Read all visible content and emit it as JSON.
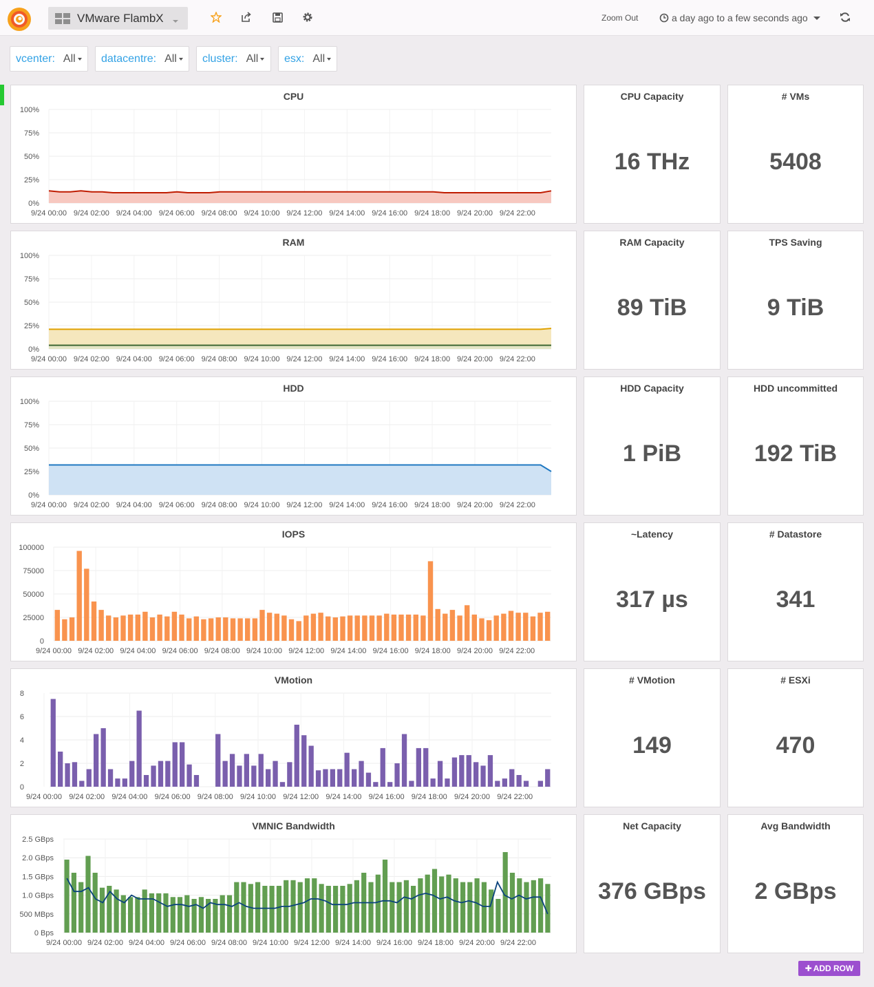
{
  "navbar": {
    "title": "VMware FlambX",
    "zoom_out": "Zoom Out",
    "time_range": "a day ago to a few seconds ago"
  },
  "variables": [
    {
      "label": "vcenter:",
      "value": "All"
    },
    {
      "label": "datacentre:",
      "value": "All"
    },
    {
      "label": "cluster:",
      "value": "All"
    },
    {
      "label": "esx:",
      "value": "All"
    }
  ],
  "x_ticks": [
    "9/24 00:00",
    "9/24 02:00",
    "9/24 04:00",
    "9/24 06:00",
    "9/24 08:00",
    "9/24 10:00",
    "9/24 12:00",
    "9/24 14:00",
    "9/24 16:00",
    "9/24 18:00",
    "9/24 20:00",
    "9/24 22:00"
  ],
  "stats": {
    "cpu_capacity": {
      "title": "CPU Capacity",
      "value": "16 THz"
    },
    "vms": {
      "title": "# VMs",
      "value": "5408"
    },
    "ram_capacity": {
      "title": "RAM Capacity",
      "value": "89 TiB"
    },
    "tps_saving": {
      "title": "TPS Saving",
      "value": "9 TiB"
    },
    "hdd_capacity": {
      "title": "HDD Capacity",
      "value": "1 PiB"
    },
    "hdd_uncommitted": {
      "title": "HDD uncommitted",
      "value": "192 TiB"
    },
    "latency": {
      "title": "~Latency",
      "value": "317 µs"
    },
    "datastore": {
      "title": "# Datastore",
      "value": "341"
    },
    "vmotion_count": {
      "title": "# VMotion",
      "value": "149"
    },
    "esxi": {
      "title": "# ESXi",
      "value": "470"
    },
    "net_capacity": {
      "title": "Net Capacity",
      "value": "376 GBps"
    },
    "avg_bandwidth": {
      "title": "Avg Bandwidth",
      "value": "2 GBps"
    }
  },
  "add_row": "ADD ROW",
  "chart_data": [
    {
      "id": "cpu",
      "type": "area",
      "title": "CPU",
      "y_ticks": [
        "100%",
        "75%",
        "50%",
        "25%",
        "0%"
      ],
      "ylim": [
        0,
        100
      ],
      "series": [
        {
          "color": "#bf1b00",
          "fill": "#f7c8c0",
          "values": [
            13,
            12,
            12,
            13,
            12,
            12,
            11,
            11,
            11,
            11,
            11,
            11,
            12,
            11,
            11,
            11,
            12,
            12,
            12,
            12,
            12,
            12,
            12,
            12,
            12,
            12,
            12,
            12,
            12,
            12,
            12,
            12,
            12,
            12,
            12,
            12,
            12,
            11,
            11,
            11,
            11,
            11,
            11,
            11,
            11,
            11,
            11,
            13
          ]
        }
      ]
    },
    {
      "id": "ram",
      "type": "area",
      "title": "RAM",
      "y_ticks": [
        "100%",
        "75%",
        "50%",
        "25%",
        "0%"
      ],
      "ylim": [
        0,
        100
      ],
      "series": [
        {
          "color": "#e0a100",
          "fill": "#f5e7bd",
          "values": [
            21,
            21,
            21,
            21,
            21,
            21,
            21,
            21,
            21,
            21,
            21,
            21,
            21,
            21,
            21,
            21,
            21,
            21,
            21,
            21,
            21,
            21,
            21,
            21,
            21,
            21,
            21,
            21,
            21,
            21,
            21,
            21,
            21,
            21,
            21,
            21,
            21,
            21,
            21,
            21,
            21,
            21,
            21,
            21,
            21,
            21,
            21,
            22
          ]
        },
        {
          "color": "#3f6833",
          "fill": "#e3e5c5",
          "values": [
            4,
            4,
            4,
            4,
            4,
            4,
            4,
            4,
            4,
            4,
            4,
            4,
            4,
            4,
            4,
            4,
            4,
            4,
            4,
            4,
            4,
            4,
            4,
            4,
            4,
            4,
            4,
            4,
            4,
            4,
            4,
            4,
            4,
            4,
            4,
            4,
            4,
            4,
            4,
            4,
            4,
            4,
            4,
            4,
            4,
            4,
            4,
            4
          ]
        }
      ]
    },
    {
      "id": "hdd",
      "type": "area",
      "title": "HDD",
      "y_ticks": [
        "100%",
        "75%",
        "50%",
        "25%",
        "0%"
      ],
      "ylim": [
        0,
        100
      ],
      "series": [
        {
          "color": "#1f78c1",
          "fill": "#cfe2f4",
          "values": [
            32,
            32,
            32,
            32,
            32,
            32,
            32,
            32,
            32,
            32,
            32,
            32,
            32,
            32,
            32,
            32,
            32,
            32,
            32,
            32,
            32,
            32,
            32,
            32,
            32,
            32,
            32,
            32,
            32,
            32,
            32,
            32,
            32,
            32,
            32,
            32,
            32,
            32,
            32,
            32,
            32,
            32,
            32,
            32,
            32,
            32,
            32,
            25
          ]
        }
      ]
    },
    {
      "id": "iops",
      "type": "bar",
      "title": "IOPS",
      "y_ticks": [
        "100000",
        "75000",
        "50000",
        "25000",
        "0"
      ],
      "ylim": [
        0,
        100000
      ],
      "series": [
        {
          "color": "#f9934e",
          "values": [
            33000,
            23000,
            25000,
            96000,
            77000,
            42000,
            33000,
            27000,
            25000,
            27000,
            28000,
            28000,
            31000,
            25000,
            28000,
            26000,
            31000,
            28000,
            24000,
            26000,
            23000,
            24000,
            25000,
            25000,
            24000,
            24000,
            24000,
            24000,
            33000,
            30000,
            29000,
            27000,
            23000,
            21000,
            27000,
            29000,
            30000,
            26000,
            25000,
            26000,
            27000,
            27000,
            27000,
            27000,
            27000,
            29000,
            28000,
            28000,
            28000,
            28000,
            27000,
            85000,
            34000,
            29000,
            33000,
            27000,
            38000,
            28000,
            24000,
            22000,
            27000,
            29000,
            32000,
            30000,
            30000,
            26000,
            30000,
            31000
          ]
        }
      ]
    },
    {
      "id": "vmotion",
      "type": "bar",
      "title": "VMotion",
      "y_ticks": [
        "8",
        "6",
        "4",
        "2",
        "0"
      ],
      "ylim": [
        0,
        8
      ],
      "series": [
        {
          "color": "#7a5fad",
          "values": [
            7.5,
            3,
            2,
            2.1,
            0.5,
            1.5,
            4.5,
            5,
            1.5,
            0.7,
            0.7,
            2.2,
            6.5,
            1,
            1.8,
            2.2,
            2.2,
            3.8,
            3.8,
            1.9,
            1,
            0,
            0,
            4.5,
            2.2,
            2.8,
            1.8,
            2.8,
            1.8,
            2.8,
            1.5,
            2.2,
            0.4,
            2.1,
            5.3,
            4.4,
            3.5,
            1.4,
            1.5,
            1.5,
            1.5,
            2.9,
            1.5,
            2.2,
            1.2,
            0.4,
            3.3,
            0.4,
            2,
            4.5,
            0.5,
            3.3,
            3.3,
            0.7,
            2.2,
            0.7,
            2.5,
            2.7,
            2.7,
            2.1,
            1.8,
            2.7,
            0.5,
            0.7,
            1.5,
            1,
            0.5,
            0,
            0.5,
            1.5
          ]
        }
      ]
    },
    {
      "id": "vmnic",
      "type": "bar",
      "title": "VMNIC Bandwidth",
      "y_ticks": [
        "2.5 GBps",
        "2.0 GBps",
        "1.5 GBps",
        "1.0 GBps",
        "500 MBps",
        "0 Bps"
      ],
      "ylim": [
        0,
        2.5
      ],
      "series": [
        {
          "color": "#629e51",
          "values": [
            1.95,
            1.6,
            1.35,
            2.05,
            1.6,
            1.2,
            1.25,
            1.15,
            1,
            0.95,
            0.95,
            1.15,
            1.05,
            1.05,
            1.05,
            0.95,
            0.95,
            1,
            0.9,
            0.95,
            0.9,
            0.9,
            1,
            1,
            1.35,
            1.35,
            1.3,
            1.35,
            1.25,
            1.25,
            1.25,
            1.4,
            1.4,
            1.35,
            1.45,
            1.45,
            1.3,
            1.25,
            1.25,
            1.25,
            1.3,
            1.4,
            1.6,
            1.35,
            1.55,
            1.95,
            1.35,
            1.35,
            1.4,
            1.25,
            1.45,
            1.55,
            1.7,
            1.5,
            1.55,
            1.45,
            1.35,
            1.35,
            1.45,
            1.35,
            1.15,
            0.9,
            2.15,
            1.6,
            1.45,
            1.35,
            1.4,
            1.45,
            1.3
          ],
          "line_color": "#0a437c",
          "line": [
            1.45,
            1.1,
            1.1,
            1.2,
            0.9,
            0.8,
            1.1,
            0.9,
            0.8,
            1,
            0.9,
            0.9,
            0.9,
            0.8,
            0.7,
            0.75,
            0.75,
            0.7,
            0.75,
            0.65,
            0.8,
            0.75,
            0.75,
            0.7,
            0.8,
            0.7,
            0.65,
            0.65,
            0.65,
            0.65,
            0.7,
            0.7,
            0.75,
            0.8,
            0.9,
            0.9,
            0.85,
            0.75,
            0.75,
            0.75,
            0.8,
            0.8,
            0.8,
            0.8,
            0.85,
            0.85,
            0.8,
            0.95,
            0.9,
            1,
            1.05,
            1,
            0.9,
            0.95,
            0.85,
            0.8,
            0.85,
            0.8,
            0.7,
            0.7,
            1.35,
            1,
            0.9,
            1,
            0.9,
            0.95,
            0.95,
            0.5
          ]
        }
      ]
    }
  ]
}
